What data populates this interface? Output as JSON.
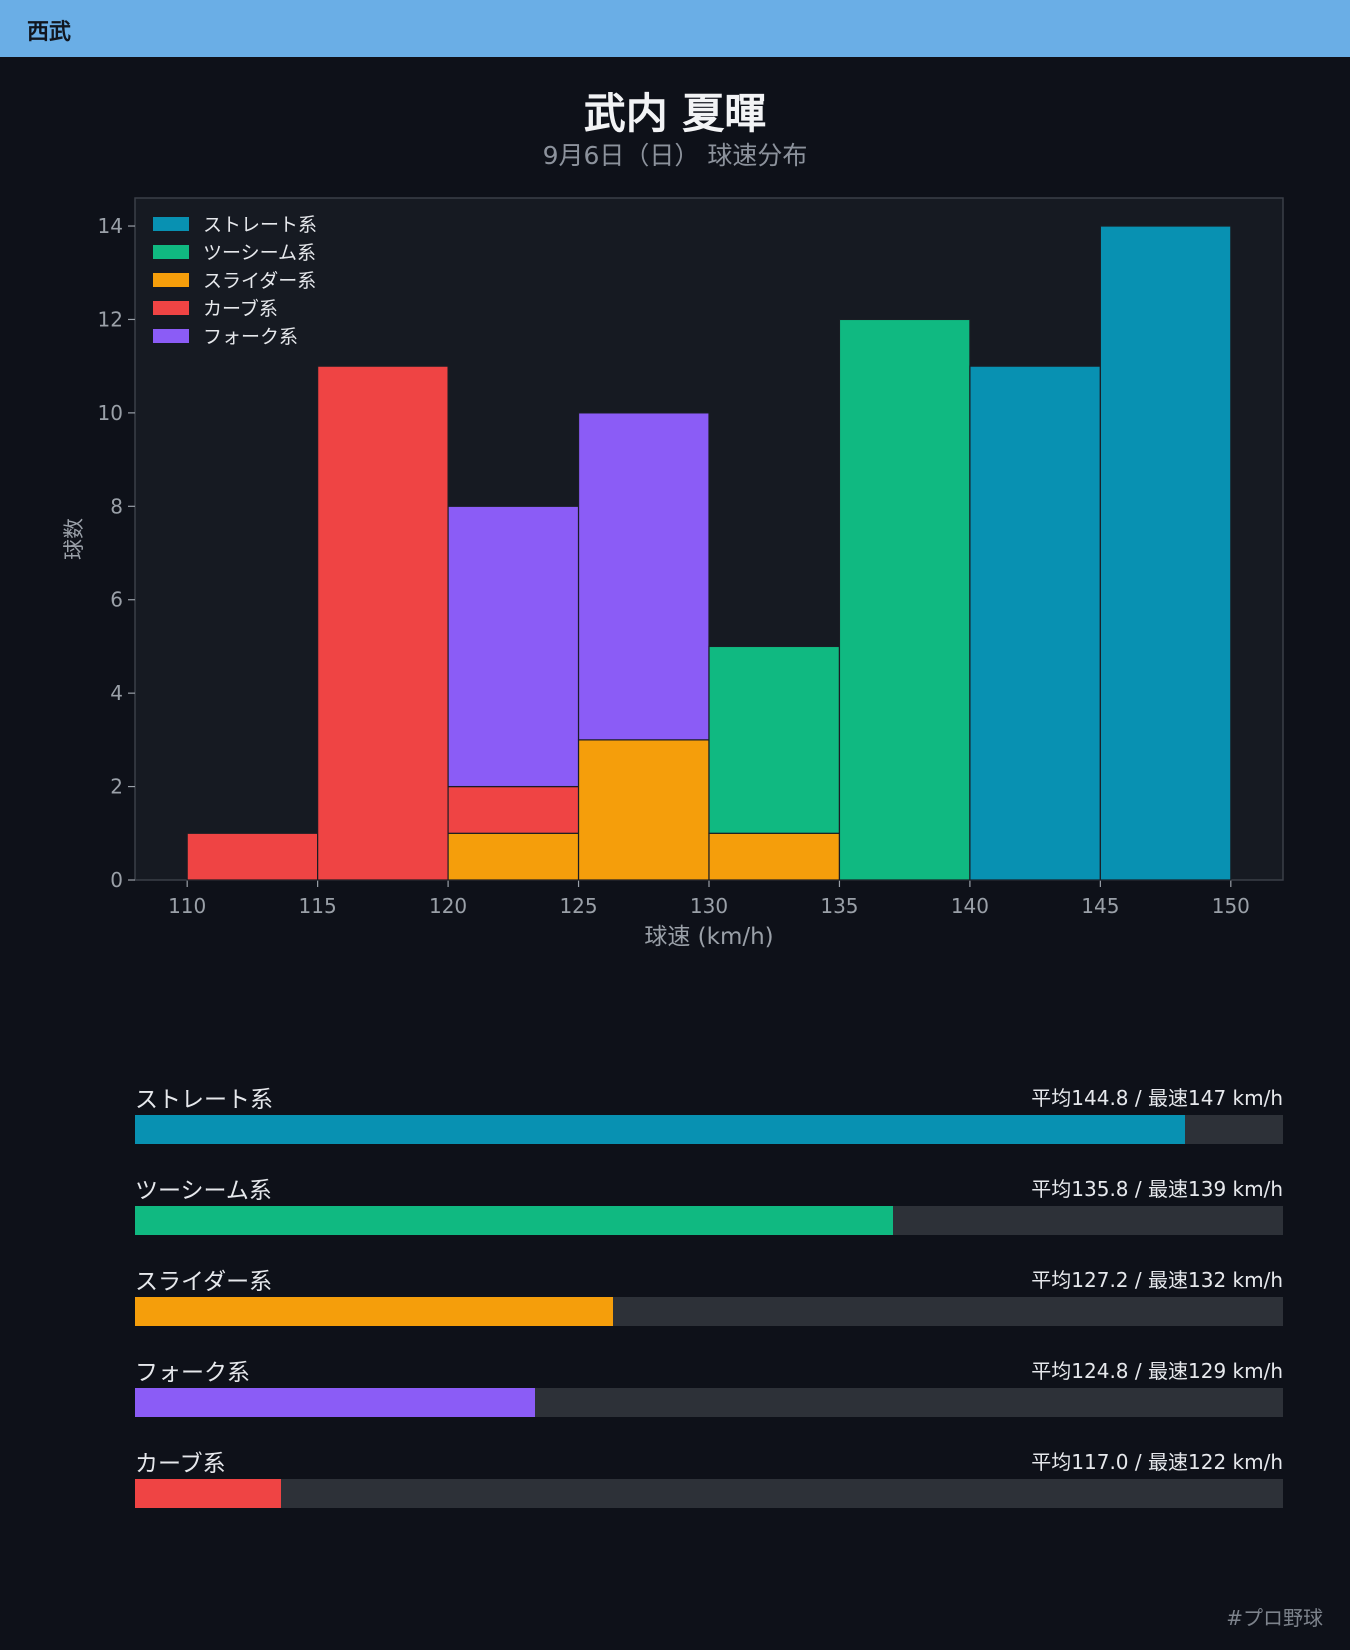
{
  "header": {
    "team": "西武"
  },
  "title": "武内 夏暉",
  "subtitle": "9月6日（日） 球速分布",
  "chart_data": {
    "type": "bar",
    "stacked": true,
    "xlabel": "球速 (km/h)",
    "ylabel": "球数",
    "xlim": [
      108,
      152
    ],
    "ylim": [
      0,
      14.6
    ],
    "xticks": [
      110,
      115,
      120,
      125,
      130,
      135,
      140,
      145,
      150
    ],
    "yticks": [
      0,
      2,
      4,
      6,
      8,
      10,
      12,
      14
    ],
    "bin_edges": [
      110,
      115,
      120,
      125,
      130,
      135,
      140,
      145,
      150
    ],
    "legend_position": "top-left",
    "series": [
      {
        "name": "ストレート系",
        "color": "#0891b2",
        "values": [
          0,
          0,
          0,
          0,
          0,
          0,
          11,
          14
        ]
      },
      {
        "name": "ツーシーム系",
        "color": "#10b981",
        "values": [
          0,
          0,
          0,
          0,
          4,
          12,
          0,
          0
        ]
      },
      {
        "name": "スライダー系",
        "color": "#f59e0b",
        "values": [
          0,
          0,
          1,
          3,
          1,
          0,
          0,
          0
        ]
      },
      {
        "name": "カーブ系",
        "color": "#ef4444",
        "values": [
          1,
          11,
          1,
          0,
          0,
          0,
          0,
          0
        ]
      },
      {
        "name": "フォーク系",
        "color": "#8b5cf6",
        "values": [
          0,
          0,
          6,
          7,
          0,
          0,
          0,
          0
        ]
      }
    ]
  },
  "speed_bars": {
    "scale_min": 112.5,
    "scale_max": 147.8,
    "items": [
      {
        "name": "ストレート系",
        "avg": 144.8,
        "stat": "平均144.8 / 最速147 km/h",
        "color": "#0891b2"
      },
      {
        "name": "ツーシーム系",
        "avg": 135.8,
        "stat": "平均135.8 / 最速139 km/h",
        "color": "#10b981"
      },
      {
        "name": "スライダー系",
        "avg": 127.2,
        "stat": "平均127.2 / 最速132 km/h",
        "color": "#f59e0b"
      },
      {
        "name": "フォーク系",
        "avg": 124.8,
        "stat": "平均124.8 / 最速129 km/h",
        "color": "#8b5cf6"
      },
      {
        "name": "カーブ系",
        "avg": 117.0,
        "stat": "平均117.0 / 最速122 km/h",
        "color": "#ef4444"
      }
    ]
  },
  "footer": {
    "hashtag": "#プロ野球"
  }
}
